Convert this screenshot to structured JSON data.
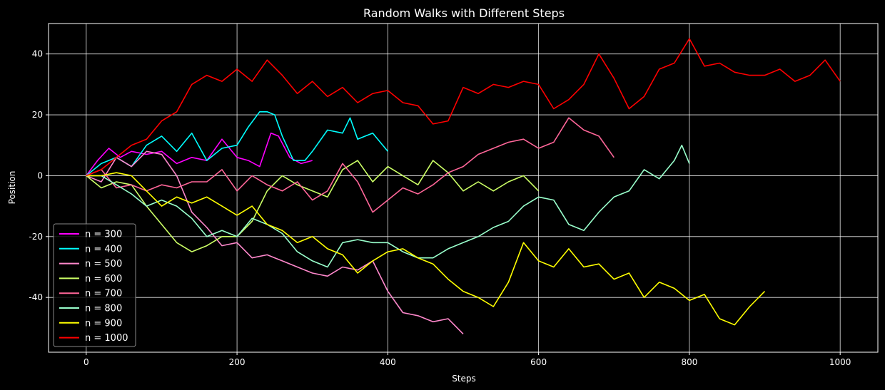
{
  "chart_data": {
    "type": "line",
    "title": "Random Walks with Different Steps",
    "xlabel": "Steps",
    "ylabel": "Position",
    "xlim": [
      -50,
      1050
    ],
    "ylim": [
      -58,
      50
    ],
    "xticks": [
      0,
      200,
      400,
      600,
      800,
      1000
    ],
    "yticks": [
      -40,
      -20,
      0,
      20,
      40
    ],
    "grid": true,
    "background": "#000000",
    "legend_position": "lower-left",
    "series": [
      {
        "name": "n = 300",
        "color": "#ff00ff",
        "x": [
          0,
          15,
          30,
          45,
          60,
          80,
          100,
          120,
          140,
          160,
          180,
          200,
          215,
          230,
          245,
          255,
          270,
          285,
          300
        ],
        "y": [
          0,
          5,
          9,
          6,
          8,
          7,
          8,
          4,
          6,
          5,
          12,
          6,
          5,
          3,
          14,
          13,
          6,
          4,
          5
        ]
      },
      {
        "name": "n = 400",
        "color": "#00ffff",
        "x": [
          0,
          20,
          40,
          60,
          80,
          100,
          120,
          140,
          160,
          180,
          200,
          215,
          230,
          240,
          250,
          260,
          275,
          290,
          300,
          320,
          340,
          350,
          360,
          380,
          400
        ],
        "y": [
          0,
          4,
          6,
          3,
          10,
          13,
          8,
          14,
          5,
          9,
          10,
          16,
          21,
          21,
          20,
          13,
          5,
          5,
          8,
          15,
          14,
          19,
          12,
          14,
          8
        ]
      },
      {
        "name": "n = 500",
        "color": "#ff88cc",
        "x": [
          0,
          20,
          40,
          60,
          80,
          100,
          120,
          140,
          160,
          180,
          200,
          220,
          240,
          260,
          280,
          300,
          320,
          340,
          360,
          380,
          400,
          420,
          440,
          460,
          480,
          500
        ],
        "y": [
          0,
          -2,
          6,
          3,
          8,
          7,
          0,
          -12,
          -17,
          -23,
          -22,
          -27,
          -26,
          -28,
          -30,
          -32,
          -33,
          -30,
          -31,
          -28,
          -38,
          -45,
          -46,
          -48,
          -47,
          -52
        ]
      },
      {
        "name": "n = 600",
        "color": "#ccff66",
        "x": [
          0,
          20,
          40,
          60,
          80,
          100,
          120,
          140,
          160,
          180,
          200,
          220,
          240,
          260,
          280,
          300,
          320,
          340,
          360,
          380,
          400,
          420,
          440,
          460,
          480,
          500,
          520,
          540,
          560,
          580,
          600
        ],
        "y": [
          0,
          -4,
          -2,
          -3,
          -10,
          -16,
          -22,
          -25,
          -23,
          -20,
          -20,
          -15,
          -5,
          0,
          -3,
          -5,
          -7,
          2,
          5,
          -2,
          3,
          0,
          -3,
          5,
          1,
          -5,
          -2,
          -5,
          -2,
          0,
          -5
        ]
      },
      {
        "name": "n = 700",
        "color": "#ff6699",
        "x": [
          0,
          20,
          40,
          60,
          80,
          100,
          120,
          140,
          160,
          180,
          200,
          220,
          240,
          260,
          280,
          300,
          320,
          340,
          360,
          380,
          400,
          420,
          440,
          460,
          480,
          500,
          520,
          540,
          560,
          580,
          600,
          620,
          640,
          660,
          680,
          700
        ],
        "y": [
          0,
          2,
          -4,
          -3,
          -5,
          -3,
          -4,
          -2,
          -2,
          2,
          -5,
          0,
          -3,
          -5,
          -2,
          -8,
          -5,
          4,
          -2,
          -12,
          -8,
          -4,
          -6,
          -3,
          1,
          3,
          7,
          9,
          11,
          12,
          9,
          11,
          19,
          15,
          13,
          6
        ]
      },
      {
        "name": "n = 800",
        "color": "#99ffcc",
        "x": [
          0,
          20,
          40,
          60,
          80,
          100,
          120,
          140,
          160,
          180,
          200,
          220,
          240,
          260,
          280,
          300,
          320,
          340,
          360,
          380,
          400,
          420,
          440,
          460,
          480,
          500,
          520,
          540,
          560,
          580,
          600,
          620,
          640,
          660,
          680,
          700,
          720,
          740,
          760,
          780,
          790,
          800
        ],
        "y": [
          0,
          0,
          -3,
          -6,
          -10,
          -8,
          -10,
          -14,
          -20,
          -18,
          -20,
          -14,
          -16,
          -19,
          -25,
          -28,
          -30,
          -22,
          -21,
          -22,
          -22,
          -25,
          -27,
          -27,
          -24,
          -22,
          -20,
          -17,
          -15,
          -10,
          -7,
          -8,
          -16,
          -18,
          -12,
          -7,
          -5,
          2,
          -1,
          5,
          10,
          4
        ]
      },
      {
        "name": "n = 900",
        "color": "#ffff00",
        "x": [
          0,
          20,
          40,
          60,
          80,
          100,
          120,
          140,
          160,
          180,
          200,
          220,
          240,
          260,
          280,
          300,
          320,
          340,
          360,
          380,
          400,
          420,
          440,
          460,
          480,
          500,
          520,
          540,
          560,
          580,
          600,
          620,
          640,
          660,
          680,
          700,
          720,
          740,
          760,
          780,
          800,
          820,
          840,
          860,
          880,
          900
        ],
        "y": [
          0,
          0,
          1,
          0,
          -5,
          -10,
          -7,
          -9,
          -7,
          -10,
          -13,
          -10,
          -16,
          -18,
          -22,
          -20,
          -24,
          -26,
          -32,
          -28,
          -25,
          -24,
          -27,
          -29,
          -34,
          -38,
          -40,
          -43,
          -35,
          -22,
          -28,
          -30,
          -24,
          -30,
          -29,
          -34,
          -32,
          -40,
          -35,
          -37,
          -41,
          -39,
          -47,
          -49,
          -43,
          -38
        ]
      },
      {
        "name": "n = 1000",
        "color": "#ff0000",
        "x": [
          0,
          20,
          40,
          60,
          80,
          100,
          120,
          140,
          160,
          180,
          200,
          220,
          240,
          260,
          280,
          300,
          320,
          340,
          360,
          380,
          400,
          420,
          440,
          460,
          480,
          500,
          520,
          540,
          560,
          580,
          600,
          620,
          640,
          660,
          680,
          700,
          720,
          740,
          760,
          780,
          800,
          820,
          840,
          860,
          880,
          900,
          920,
          940,
          960,
          980,
          1000
        ],
        "y": [
          0,
          2,
          6,
          10,
          12,
          18,
          21,
          30,
          33,
          31,
          35,
          31,
          38,
          33,
          27,
          31,
          26,
          29,
          24,
          27,
          28,
          24,
          23,
          17,
          18,
          29,
          27,
          30,
          29,
          31,
          30,
          22,
          25,
          30,
          40,
          32,
          22,
          26,
          35,
          37,
          45,
          36,
          37,
          34,
          33,
          33,
          35,
          31,
          33,
          38,
          31
        ]
      }
    ]
  }
}
